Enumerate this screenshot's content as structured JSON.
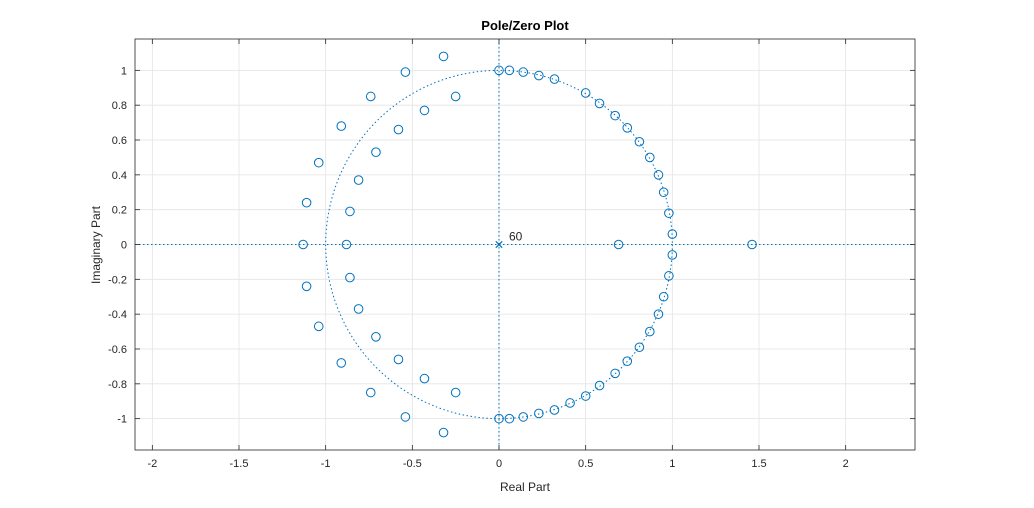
{
  "chart_data": {
    "type": "scatter",
    "title": "Pole/Zero Plot",
    "xlabel": "Real Part",
    "ylabel": "Imaginary Part",
    "xlim": [
      -2.1,
      2.4
    ],
    "ylim": [
      -1.18,
      1.18
    ],
    "xticks": [
      -2,
      -1.5,
      -1,
      -0.5,
      0,
      0.5,
      1,
      1.5,
      2
    ],
    "xtick_labels": [
      "-2",
      "-1.5",
      "-1",
      "-0.5",
      "0",
      "0.5",
      "1",
      "1.5",
      "2"
    ],
    "yticks": [
      -1,
      -0.8,
      -0.6,
      -0.4,
      -0.2,
      0,
      0.2,
      0.4,
      0.6,
      0.8,
      1
    ],
    "ytick_labels": [
      "-1",
      "-0.8",
      "-0.6",
      "-0.4",
      "-0.2",
      "0",
      "0.2",
      "0.4",
      "0.6",
      "0.8",
      "1"
    ],
    "grid": true,
    "unit_circle": true,
    "colors": {
      "marker": "#0072BD",
      "grid": "#e3e3e3",
      "axes": "#262626"
    },
    "pole_multiplicity_label": "60",
    "series": [
      {
        "marker": "x",
        "points": [
          [
            0,
            0
          ]
        ]
      },
      {
        "marker": "o",
        "points": [
          [
            1.46,
            0
          ],
          [
            0.69,
            0
          ],
          [
            -1.13,
            0
          ],
          [
            -0.88,
            0
          ],
          [
            0.0,
            1.0
          ],
          [
            0.06,
            1.0
          ],
          [
            0.14,
            0.99
          ],
          [
            0.23,
            0.97
          ],
          [
            0.32,
            0.95
          ],
          [
            0.5,
            0.87
          ],
          [
            0.58,
            0.81
          ],
          [
            0.67,
            0.74
          ],
          [
            0.74,
            0.67
          ],
          [
            0.81,
            0.59
          ],
          [
            0.87,
            0.5
          ],
          [
            0.92,
            0.4
          ],
          [
            0.95,
            0.3
          ],
          [
            0.98,
            0.18
          ],
          [
            1.0,
            0.06
          ],
          [
            0.0,
            -1.0
          ],
          [
            0.06,
            -1.0
          ],
          [
            0.14,
            -0.99
          ],
          [
            0.23,
            -0.97
          ],
          [
            0.32,
            -0.95
          ],
          [
            0.41,
            -0.91
          ],
          [
            0.5,
            -0.87
          ],
          [
            0.58,
            -0.81
          ],
          [
            0.67,
            -0.74
          ],
          [
            0.74,
            -0.67
          ],
          [
            0.81,
            -0.59
          ],
          [
            0.87,
            -0.5
          ],
          [
            0.92,
            -0.4
          ],
          [
            0.95,
            -0.3
          ],
          [
            0.98,
            -0.18
          ],
          [
            1.0,
            -0.06
          ],
          [
            -0.32,
            1.08
          ],
          [
            -0.54,
            0.99
          ],
          [
            -0.74,
            0.85
          ],
          [
            -0.91,
            0.68
          ],
          [
            -1.04,
            0.47
          ],
          [
            -1.11,
            0.24
          ],
          [
            -0.25,
            0.85
          ],
          [
            -0.43,
            0.77
          ],
          [
            -0.58,
            0.66
          ],
          [
            -0.71,
            0.53
          ],
          [
            -0.81,
            0.37
          ],
          [
            -0.86,
            0.19
          ],
          [
            -0.32,
            -1.08
          ],
          [
            -0.54,
            -0.99
          ],
          [
            -0.74,
            -0.85
          ],
          [
            -0.91,
            -0.68
          ],
          [
            -1.04,
            -0.47
          ],
          [
            -1.11,
            -0.24
          ],
          [
            -0.25,
            -0.85
          ],
          [
            -0.43,
            -0.77
          ],
          [
            -0.58,
            -0.66
          ],
          [
            -0.71,
            -0.53
          ],
          [
            -0.81,
            -0.37
          ],
          [
            -0.86,
            -0.19
          ]
        ]
      }
    ]
  }
}
